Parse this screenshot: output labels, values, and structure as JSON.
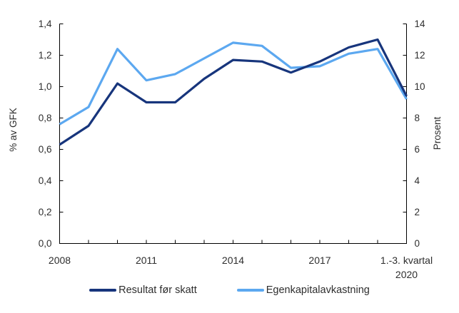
{
  "chart_data": {
    "type": "line",
    "x": [
      2008,
      2009,
      2010,
      2011,
      2012,
      2013,
      2014,
      2015,
      2016,
      2017,
      2018,
      2019,
      2020
    ],
    "x_axis": {
      "tick_years": [
        2009,
        2010,
        2011,
        2012,
        2013,
        2014,
        2015,
        2016,
        2017,
        2018,
        2019
      ],
      "labels": [
        {
          "year": 2008,
          "lines": [
            "2008"
          ]
        },
        {
          "year": 2011,
          "lines": [
            "2011"
          ]
        },
        {
          "year": 2014,
          "lines": [
            "2014"
          ]
        },
        {
          "year": 2017,
          "lines": [
            "2017"
          ]
        },
        {
          "year": 2020,
          "lines": [
            "1.-3. kvartal",
            "2020"
          ]
        }
      ]
    },
    "left_axis": {
      "label": "% av GFK",
      "min": 0,
      "max": 1.4,
      "ticks": [
        {
          "v": 0.0,
          "label": "0,0"
        },
        {
          "v": 0.2,
          "label": "0,2"
        },
        {
          "v": 0.4,
          "label": "0,4"
        },
        {
          "v": 0.6,
          "label": "0,6"
        },
        {
          "v": 0.8,
          "label": "0,8"
        },
        {
          "v": 1.0,
          "label": "1,0"
        },
        {
          "v": 1.2,
          "label": "1,2"
        },
        {
          "v": 1.4,
          "label": "1,4"
        }
      ]
    },
    "right_axis": {
      "label": "Prosent",
      "min": 0,
      "max": 14,
      "ticks": [
        {
          "v": 0,
          "label": "0"
        },
        {
          "v": 2,
          "label": "2"
        },
        {
          "v": 4,
          "label": "4"
        },
        {
          "v": 6,
          "label": "6"
        },
        {
          "v": 8,
          "label": "8"
        },
        {
          "v": 10,
          "label": "10"
        },
        {
          "v": 12,
          "label": "12"
        },
        {
          "v": 14,
          "label": "14"
        }
      ]
    },
    "series": [
      {
        "name": "Resultat før skatt",
        "axis": "left",
        "color": "#17357C",
        "values": [
          0.63,
          0.75,
          1.02,
          0.9,
          0.9,
          1.05,
          1.17,
          1.16,
          1.09,
          1.16,
          1.25,
          1.3,
          0.94
        ]
      },
      {
        "name": "Egenkapitalavkastning",
        "axis": "right",
        "color": "#5CA8F0",
        "values": [
          7.6,
          8.7,
          12.4,
          10.4,
          10.8,
          11.8,
          12.8,
          12.6,
          11.2,
          11.3,
          12.1,
          12.4,
          9.2
        ]
      }
    ],
    "legend_position": "bottom",
    "grid": false
  },
  "colors": {
    "background": "#ffffff",
    "axis": "#000000",
    "text": "#2e2e2e"
  }
}
